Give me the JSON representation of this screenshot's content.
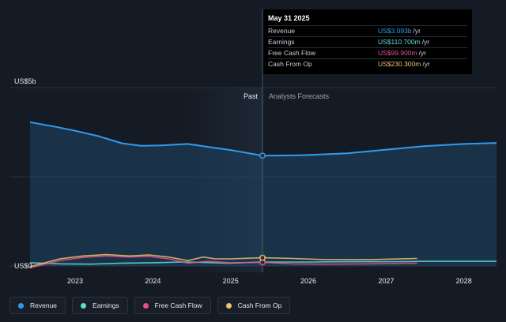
{
  "chart_data": {
    "type": "area",
    "y_max_label": "US$5b",
    "y_min_label": "US$0",
    "ylim": [
      0,
      5
    ],
    "xlim": [
      2022.42,
      2028.42
    ],
    "x_ticks": [
      2023,
      2024,
      2025,
      2026,
      2027,
      2028
    ],
    "x_tick_labels": [
      "2023",
      "2024",
      "2025",
      "2026",
      "2027",
      "2028"
    ],
    "divider_x": 2025.41,
    "past_label": "Past",
    "forecast_label": "Analysts Forecasts",
    "series": [
      {
        "name": "Revenue",
        "color": "#2f9bf0",
        "area": true,
        "points": [
          [
            2022.42,
            4.03
          ],
          [
            2022.75,
            3.9
          ],
          [
            2023.0,
            3.79
          ],
          [
            2023.3,
            3.64
          ],
          [
            2023.6,
            3.44
          ],
          [
            2023.85,
            3.37
          ],
          [
            2024.1,
            3.38
          ],
          [
            2024.45,
            3.42
          ],
          [
            2024.7,
            3.34
          ],
          [
            2025.0,
            3.25
          ],
          [
            2025.41,
            3.093
          ],
          [
            2025.8,
            3.1
          ],
          [
            2026.0,
            3.11
          ],
          [
            2026.5,
            3.16
          ],
          [
            2027.0,
            3.26
          ],
          [
            2027.5,
            3.36
          ],
          [
            2028.0,
            3.42
          ],
          [
            2028.42,
            3.45
          ]
        ]
      },
      {
        "name": "Earnings",
        "color": "#5ee0d0",
        "area": false,
        "points": [
          [
            2022.42,
            0.09
          ],
          [
            2022.8,
            0.06
          ],
          [
            2023.2,
            0.05
          ],
          [
            2023.6,
            0.08
          ],
          [
            2024.0,
            0.09
          ],
          [
            2024.4,
            0.11
          ],
          [
            2024.8,
            0.09
          ],
          [
            2025.0,
            0.08
          ],
          [
            2025.41,
            0.1107
          ],
          [
            2026.0,
            0.11
          ],
          [
            2026.5,
            0.12
          ],
          [
            2027.0,
            0.12
          ],
          [
            2027.5,
            0.13
          ],
          [
            2028.0,
            0.13
          ],
          [
            2028.42,
            0.13
          ]
        ]
      },
      {
        "name": "Free Cash Flow",
        "color": "#e5528c",
        "area": false,
        "points": [
          [
            2022.42,
            -0.05
          ],
          [
            2022.8,
            0.15
          ],
          [
            2023.1,
            0.24
          ],
          [
            2023.4,
            0.28
          ],
          [
            2023.7,
            0.25
          ],
          [
            2023.95,
            0.27
          ],
          [
            2024.2,
            0.2
          ],
          [
            2024.45,
            0.08
          ],
          [
            2024.7,
            0.13
          ],
          [
            2025.0,
            0.09
          ],
          [
            2025.41,
            0.0999
          ],
          [
            2025.8,
            0.06
          ],
          [
            2026.2,
            0.05
          ],
          [
            2026.8,
            0.06
          ],
          [
            2027.4,
            0.08
          ]
        ]
      },
      {
        "name": "Cash From Op",
        "color": "#f4c06a",
        "area": false,
        "points": [
          [
            2022.42,
            -0.02
          ],
          [
            2022.8,
            0.2
          ],
          [
            2023.1,
            0.28
          ],
          [
            2023.4,
            0.32
          ],
          [
            2023.7,
            0.28
          ],
          [
            2023.95,
            0.31
          ],
          [
            2024.2,
            0.25
          ],
          [
            2024.45,
            0.15
          ],
          [
            2024.65,
            0.25
          ],
          [
            2024.8,
            0.2
          ],
          [
            2025.0,
            0.2
          ],
          [
            2025.41,
            0.2303
          ],
          [
            2025.8,
            0.21
          ],
          [
            2026.2,
            0.18
          ],
          [
            2026.8,
            0.18
          ],
          [
            2027.4,
            0.21
          ]
        ]
      }
    ]
  },
  "tooltip": {
    "date": "May 31 2025",
    "rows": [
      {
        "label": "Revenue",
        "value": "US$3.093b",
        "unit": "/yr",
        "color": "#2f9bf0"
      },
      {
        "label": "Earnings",
        "value": "US$110.700m",
        "unit": "/yr",
        "color": "#5ee0d0"
      },
      {
        "label": "Free Cash Flow",
        "value": "US$99.900m",
        "unit": "/yr",
        "color": "#e5528c"
      },
      {
        "label": "Cash From Op",
        "value": "US$230.300m",
        "unit": "/yr",
        "color": "#f4c06a"
      }
    ]
  },
  "legend": [
    {
      "label": "Revenue",
      "color": "#2f9bf0"
    },
    {
      "label": "Earnings",
      "color": "#5ee0d0"
    },
    {
      "label": "Free Cash Flow",
      "color": "#e5528c"
    },
    {
      "label": "Cash From Op",
      "color": "#f4c06a"
    }
  ]
}
